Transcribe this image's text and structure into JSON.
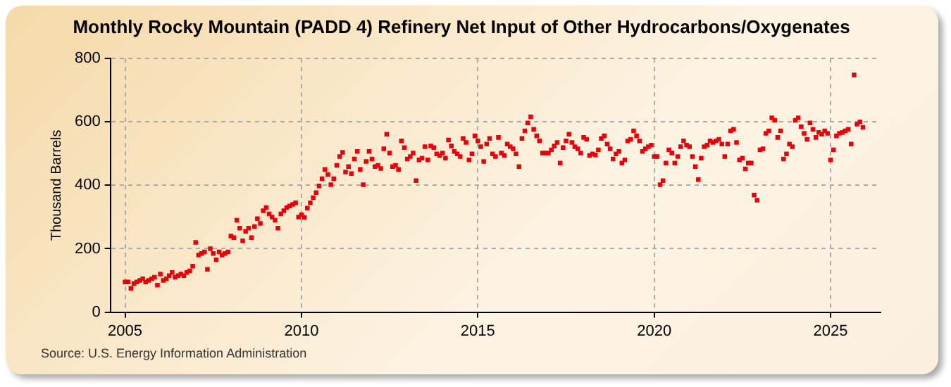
{
  "chart_data": {
    "type": "scatter",
    "title": "Monthly Rocky Mountain (PADD 4) Refinery Net Input of Other Hydrocarbons/Oxygenates",
    "ylabel": "Thousand Barrels",
    "annotations": [
      "Source: U.S. Energy Information Administration"
    ],
    "x": [
      "2005-01",
      "2005-02",
      "2005-03",
      "2005-04",
      "2005-05",
      "2005-06",
      "2005-07",
      "2005-08",
      "2005-09",
      "2005-10",
      "2005-11",
      "2005-12",
      "2006-01",
      "2006-02",
      "2006-03",
      "2006-04",
      "2006-05",
      "2006-06",
      "2006-07",
      "2006-08",
      "2006-09",
      "2006-10",
      "2006-11",
      "2006-12",
      "2007-01",
      "2007-02",
      "2007-03",
      "2007-04",
      "2007-05",
      "2007-06",
      "2007-07",
      "2007-08",
      "2007-09",
      "2007-10",
      "2007-11",
      "2007-12",
      "2008-01",
      "2008-02",
      "2008-03",
      "2008-04",
      "2008-05",
      "2008-06",
      "2008-07",
      "2008-08",
      "2008-09",
      "2008-10",
      "2008-11",
      "2008-12",
      "2009-01",
      "2009-02",
      "2009-03",
      "2009-04",
      "2009-05",
      "2009-06",
      "2009-07",
      "2009-08",
      "2009-09",
      "2009-10",
      "2009-11",
      "2009-12",
      "2010-01",
      "2010-02",
      "2010-03",
      "2010-04",
      "2010-05",
      "2010-06",
      "2010-07",
      "2010-08",
      "2010-09",
      "2010-10",
      "2010-11",
      "2010-12",
      "2011-01",
      "2011-02",
      "2011-03",
      "2011-04",
      "2011-05",
      "2011-06",
      "2011-07",
      "2011-08",
      "2011-09",
      "2011-10",
      "2011-11",
      "2011-12",
      "2012-01",
      "2012-02",
      "2012-03",
      "2012-04",
      "2012-05",
      "2012-06",
      "2012-07",
      "2012-08",
      "2012-09",
      "2012-10",
      "2012-11",
      "2012-12",
      "2013-01",
      "2013-02",
      "2013-03",
      "2013-04",
      "2013-05",
      "2013-06",
      "2013-07",
      "2013-08",
      "2013-09",
      "2013-10",
      "2013-11",
      "2013-12",
      "2014-01",
      "2014-02",
      "2014-03",
      "2014-04",
      "2014-05",
      "2014-06",
      "2014-07",
      "2014-08",
      "2014-09",
      "2014-10",
      "2014-11",
      "2014-12",
      "2015-01",
      "2015-02",
      "2015-03",
      "2015-04",
      "2015-05",
      "2015-06",
      "2015-07",
      "2015-08",
      "2015-09",
      "2015-10",
      "2015-11",
      "2015-12",
      "2016-01",
      "2016-02",
      "2016-03",
      "2016-04",
      "2016-05",
      "2016-06",
      "2016-07",
      "2016-08",
      "2016-09",
      "2016-10",
      "2016-11",
      "2016-12",
      "2017-01",
      "2017-02",
      "2017-03",
      "2017-04",
      "2017-05",
      "2017-06",
      "2017-07",
      "2017-08",
      "2017-09",
      "2017-10",
      "2017-11",
      "2017-12",
      "2018-01",
      "2018-02",
      "2018-03",
      "2018-04",
      "2018-05",
      "2018-06",
      "2018-07",
      "2018-08",
      "2018-09",
      "2018-10",
      "2018-11",
      "2018-12",
      "2019-01",
      "2019-02",
      "2019-03",
      "2019-04",
      "2019-05",
      "2019-06",
      "2019-07",
      "2019-08",
      "2019-09",
      "2019-10",
      "2019-11",
      "2019-12",
      "2020-01",
      "2020-02",
      "2020-03",
      "2020-04",
      "2020-05",
      "2020-06",
      "2020-07",
      "2020-08",
      "2020-09",
      "2020-10",
      "2020-11",
      "2020-12",
      "2021-01",
      "2021-02",
      "2021-03",
      "2021-04",
      "2021-05",
      "2021-06",
      "2021-07",
      "2021-08",
      "2021-09",
      "2021-10",
      "2021-11",
      "2021-12",
      "2022-01",
      "2022-02",
      "2022-03",
      "2022-04",
      "2022-05",
      "2022-06",
      "2022-07",
      "2022-08",
      "2022-09",
      "2022-10",
      "2022-11",
      "2022-12",
      "2023-01",
      "2023-02",
      "2023-03",
      "2023-04",
      "2023-05",
      "2023-06",
      "2023-07",
      "2023-08",
      "2023-09",
      "2023-10",
      "2023-11",
      "2023-12",
      "2024-01",
      "2024-02",
      "2024-03",
      "2024-04",
      "2024-05",
      "2024-06",
      "2024-07",
      "2024-08",
      "2024-09",
      "2024-10",
      "2024-11",
      "2024-12",
      "2025-01",
      "2025-02",
      "2025-03",
      "2025-04",
      "2025-05",
      "2025-06",
      "2025-07",
      "2025-08",
      "2025-09",
      "2025-10",
      "2025-11",
      "2025-12"
    ],
    "series": [
      {
        "color": "#e8000b",
        "values": [
          95,
          95,
          75,
          90,
          95,
          100,
          105,
          95,
          100,
          105,
          110,
          85,
          120,
          100,
          105,
          115,
          125,
          110,
          115,
          120,
          115,
          125,
          130,
          145,
          220,
          180,
          185,
          190,
          135,
          200,
          185,
          165,
          190,
          180,
          185,
          190,
          240,
          235,
          290,
          265,
          225,
          255,
          265,
          235,
          270,
          295,
          280,
          320,
          330,
          310,
          300,
          290,
          265,
          310,
          320,
          330,
          335,
          340,
          345,
          300,
          307,
          299,
          328,
          345,
          361,
          377,
          398,
          421,
          450,
          434,
          402,
          421,
          463,
          491,
          504,
          442,
          459,
          437,
          483,
          507,
          450,
          402,
          475,
          507,
          483,
          459,
          463,
          453,
          515,
          561,
          502,
          459,
          463,
          450,
          540,
          519,
          483,
          491,
          502,
          415,
          480,
          486,
          522,
          480,
          524,
          519,
          499,
          494,
          502,
          486,
          543,
          524,
          507,
          499,
          491,
          548,
          535,
          480,
          499,
          556,
          540,
          522,
          475,
          530,
          548,
          499,
          491,
          551,
          502,
          494,
          530,
          522,
          515,
          499,
          459,
          548,
          572,
          597,
          616,
          577,
          556,
          540,
          502,
          502,
          502,
          512,
          524,
          535,
          470,
          519,
          540,
          561,
          535,
          522,
          515,
          502,
          551,
          545,
          494,
          499,
          496,
          512,
          548,
          556,
          530,
          515,
          483,
          499,
          507,
          470,
          480,
          540,
          545,
          572,
          556,
          540,
          507,
          515,
          522,
          527,
          491,
          491,
          402,
          415,
          470,
          512,
          502,
          470,
          491,
          522,
          540,
          527,
          522,
          491,
          459,
          418,
          486,
          522,
          527,
          540,
          535,
          540,
          545,
          530,
          491,
          530,
          572,
          577,
          535,
          480,
          486,
          452,
          470,
          470,
          369,
          353,
          512,
          515,
          564,
          572,
          613,
          605,
          551,
          572,
          483,
          499,
          530,
          522,
          605,
          613,
          585,
          564,
          545,
          597,
          577,
          551,
          567,
          561,
          572,
          564,
          480,
          512,
          556,
          564,
          567,
          572,
          577,
          530,
          748,
          593,
          600,
          583
        ]
      }
    ],
    "xlim": [
      "2004-08",
      "2026-06"
    ],
    "xticks": [
      "2005",
      "2010",
      "2015",
      "2020",
      "2025"
    ],
    "ylim": [
      0,
      800
    ],
    "yticks": [
      0,
      200,
      400,
      600,
      800
    ],
    "grid": true,
    "marker": "square"
  }
}
